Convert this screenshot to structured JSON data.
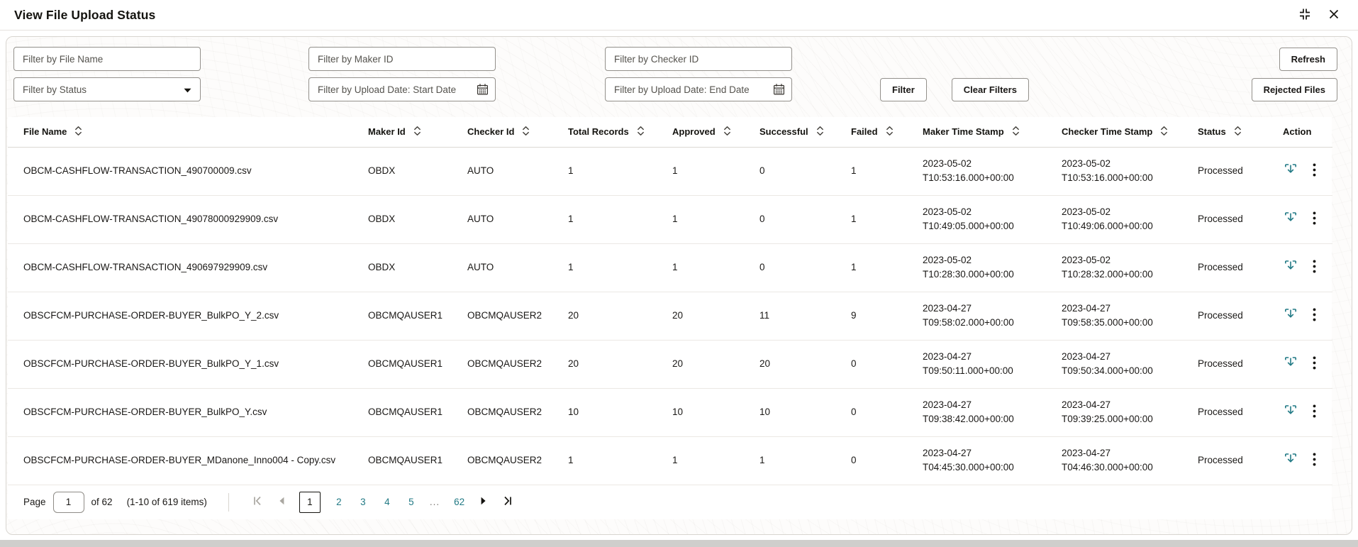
{
  "header": {
    "title": "View File Upload Status"
  },
  "colors": {
    "accent_teal": "#227a85",
    "text_dark": "#1a1816"
  },
  "filters": {
    "file_name_placeholder": "Filter by File Name",
    "maker_id_placeholder": "Filter by Maker ID",
    "checker_id_placeholder": "Filter by Checker ID",
    "status_placeholder": "Filter by Status",
    "start_date_placeholder": "Filter by Upload Date: Start Date",
    "end_date_placeholder": "Filter by Upload Date: End Date",
    "filter_button": "Filter",
    "clear_filters_button": "Clear Filters",
    "refresh_button": "Refresh",
    "rejected_files_button": "Rejected Files"
  },
  "table": {
    "columns": [
      {
        "label": "File Name",
        "key": "file_name",
        "sortable": true
      },
      {
        "label": "Maker Id",
        "key": "maker_id",
        "sortable": true
      },
      {
        "label": "Checker Id",
        "key": "checker_id",
        "sortable": true
      },
      {
        "label": "Total Records",
        "key": "total_records",
        "sortable": true
      },
      {
        "label": "Approved",
        "key": "approved",
        "sortable": true
      },
      {
        "label": "Successful",
        "key": "successful",
        "sortable": true
      },
      {
        "label": "Failed",
        "key": "failed",
        "sortable": true
      },
      {
        "label": "Maker Time Stamp",
        "key": "maker_time_stamp",
        "sortable": true
      },
      {
        "label": "Checker Time Stamp",
        "key": "checker_time_stamp",
        "sortable": true
      },
      {
        "label": "Status",
        "key": "status",
        "sortable": true
      },
      {
        "label": "Action",
        "key": "action",
        "sortable": false
      }
    ],
    "rows": [
      {
        "file_name": "OBCM-CASHFLOW-TRANSACTION_490700009.csv",
        "maker_id": "OBDX",
        "checker_id": "AUTO",
        "total_records": "1",
        "approved": "1",
        "successful": "0",
        "failed": "1",
        "maker_time_stamp": "2023-05-02 T10:53:16.000+00:00",
        "checker_time_stamp": "2023-05-02 T10:53:16.000+00:00",
        "status": "Processed"
      },
      {
        "file_name": "OBCM-CASHFLOW-TRANSACTION_49078000929909.csv",
        "maker_id": "OBDX",
        "checker_id": "AUTO",
        "total_records": "1",
        "approved": "1",
        "successful": "0",
        "failed": "1",
        "maker_time_stamp": "2023-05-02 T10:49:05.000+00:00",
        "checker_time_stamp": "2023-05-02 T10:49:06.000+00:00",
        "status": "Processed"
      },
      {
        "file_name": "OBCM-CASHFLOW-TRANSACTION_490697929909.csv",
        "maker_id": "OBDX",
        "checker_id": "AUTO",
        "total_records": "1",
        "approved": "1",
        "successful": "0",
        "failed": "1",
        "maker_time_stamp": "2023-05-02 T10:28:30.000+00:00",
        "checker_time_stamp": "2023-05-02 T10:28:32.000+00:00",
        "status": "Processed"
      },
      {
        "file_name": "OBSCFCM-PURCHASE-ORDER-BUYER_BulkPO_Y_2.csv",
        "maker_id": "OBCMQAUSER1",
        "checker_id": "OBCMQAUSER2",
        "total_records": "20",
        "approved": "20",
        "successful": "11",
        "failed": "9",
        "maker_time_stamp": "2023-04-27 T09:58:02.000+00:00",
        "checker_time_stamp": "2023-04-27 T09:58:35.000+00:00",
        "status": "Processed"
      },
      {
        "file_name": "OBSCFCM-PURCHASE-ORDER-BUYER_BulkPO_Y_1.csv",
        "maker_id": "OBCMQAUSER1",
        "checker_id": "OBCMQAUSER2",
        "total_records": "20",
        "approved": "20",
        "successful": "20",
        "failed": "0",
        "maker_time_stamp": "2023-04-27 T09:50:11.000+00:00",
        "checker_time_stamp": "2023-04-27 T09:50:34.000+00:00",
        "status": "Processed"
      },
      {
        "file_name": "OBSCFCM-PURCHASE-ORDER-BUYER_BulkPO_Y.csv",
        "maker_id": "OBCMQAUSER1",
        "checker_id": "OBCMQAUSER2",
        "total_records": "10",
        "approved": "10",
        "successful": "10",
        "failed": "0",
        "maker_time_stamp": "2023-04-27 T09:38:42.000+00:00",
        "checker_time_stamp": "2023-04-27 T09:39:25.000+00:00",
        "status": "Processed"
      },
      {
        "file_name": "OBSCFCM-PURCHASE-ORDER-BUYER_MDanone_Inno004 - Copy.csv",
        "maker_id": "OBCMQAUSER1",
        "checker_id": "OBCMQAUSER2",
        "total_records": "1",
        "approved": "1",
        "successful": "1",
        "failed": "0",
        "maker_time_stamp": "2023-04-27 T04:45:30.000+00:00",
        "checker_time_stamp": "2023-04-27 T04:46:30.000+00:00",
        "status": "Processed"
      }
    ]
  },
  "pagination": {
    "page_label": "Page",
    "page_value": "1",
    "total_label": "of 62",
    "items_label": "(1-10 of 619 items)",
    "pages": [
      "1",
      "2",
      "3",
      "4",
      "5",
      "...",
      "62"
    ],
    "current": "1"
  }
}
